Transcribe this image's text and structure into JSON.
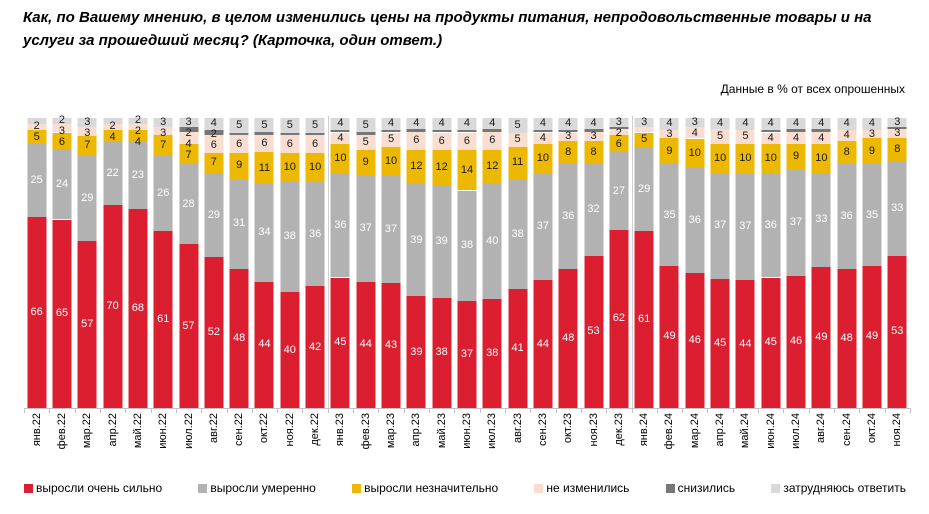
{
  "header": {
    "title": "Как, по Вашему мнению, в целом изменились цены на продукты питания, непродовольственные товары и на услуги за прошедший месяц? (Карточка, один ответ.)",
    "note": "Данные в % от всех опрошенных"
  },
  "chart_data": {
    "type": "bar",
    "stacked": true,
    "unit": "% от всех опрошенных",
    "ylim": [
      0,
      100
    ],
    "grid": false,
    "legend_position": "bottom",
    "categories": [
      "янв.22",
      "фев.22",
      "мар.22",
      "апр.22",
      "май.22",
      "июн.22",
      "июл.22",
      "авг.22",
      "сен.22",
      "окт.22",
      "ноя.22",
      "дек.22",
      "янв.23",
      "фев.23",
      "мар.23",
      "апр.23",
      "май.23",
      "июн.23",
      "июл.23",
      "авг.23",
      "сен.23",
      "окт.23",
      "ноя.23",
      "дек.23",
      "янв.24",
      "фев.24",
      "мар.24",
      "апр.24",
      "май.24",
      "июн.24",
      "июл.24",
      "авг.24",
      "сен.24",
      "окт.24",
      "ноя.24"
    ],
    "year_separators_after_index": [
      11,
      23
    ],
    "series": [
      {
        "name": "выросли очень сильно",
        "color": "#dc1f30",
        "label_color": "#ffffff",
        "values": [
          66,
          65,
          57,
          70,
          68,
          61,
          57,
          52,
          48,
          44,
          40,
          42,
          45,
          44,
          43,
          39,
          38,
          37,
          38,
          41,
          44,
          48,
          53,
          62,
          61,
          49,
          46,
          45,
          44,
          45,
          46,
          49,
          48,
          49,
          53
        ],
        "hidden_labels": []
      },
      {
        "name": "выросли умеренно",
        "color": "#b2b2b2",
        "label_color": "#ffffff",
        "values": [
          25,
          24,
          29,
          22,
          23,
          26,
          28,
          29,
          31,
          34,
          38,
          36,
          36,
          37,
          37,
          39,
          39,
          38,
          40,
          38,
          37,
          36,
          32,
          27,
          29,
          35,
          36,
          37,
          37,
          36,
          37,
          33,
          36,
          35,
          33
        ],
        "hidden_labels": []
      },
      {
        "name": "выросли незначительно",
        "color": "#ecb800",
        "label_color": "#1a1a1a",
        "values": [
          5,
          6,
          7,
          4,
          4,
          7,
          7,
          7,
          9,
          11,
          10,
          10,
          10,
          9,
          10,
          12,
          12,
          14,
          12,
          11,
          10,
          8,
          8,
          6,
          5,
          9,
          10,
          10,
          10,
          10,
          9,
          10,
          8,
          9,
          8
        ],
        "hidden_labels": []
      },
      {
        "name": "не изменились",
        "color": "#f8ddd0",
        "label_color": "#1a1a1a",
        "values": [
          2,
          3,
          3,
          2,
          2,
          3,
          4,
          6,
          6,
          6,
          6,
          6,
          4,
          5,
          5,
          6,
          6,
          6,
          6,
          5,
          4,
          3,
          3,
          2,
          2,
          3,
          4,
          5,
          5,
          4,
          4,
          4,
          4,
          3,
          3
        ],
        "hidden_labels": [
          24
        ]
      },
      {
        "name": "снизились",
        "color": "#777777",
        "label_color": "#1a1a1a",
        "values": [
          0,
          0,
          0,
          0,
          0,
          0,
          2,
          2,
          1,
          1,
          1,
          1,
          1,
          1,
          1,
          1,
          1,
          1,
          1,
          0,
          1,
          1,
          1,
          1,
          0,
          0,
          0,
          0,
          0,
          1,
          1,
          1,
          0,
          0,
          1
        ],
        "hidden_labels": [
          8,
          9,
          10,
          11,
          12,
          13,
          14,
          15,
          16,
          17,
          18,
          20,
          21,
          22,
          23,
          29,
          30,
          31,
          34
        ]
      },
      {
        "name": "затрудняюсь ответить",
        "color": "#d9d9d9",
        "label_color": "#1a1a1a",
        "values": [
          2,
          2,
          3,
          2,
          2,
          3,
          3,
          4,
          5,
          5,
          5,
          5,
          4,
          5,
          4,
          4,
          4,
          4,
          4,
          5,
          4,
          4,
          4,
          3,
          3,
          4,
          3,
          4,
          4,
          4,
          4,
          4,
          4,
          4,
          3
        ],
        "hidden_labels": [
          0,
          3
        ]
      }
    ]
  }
}
